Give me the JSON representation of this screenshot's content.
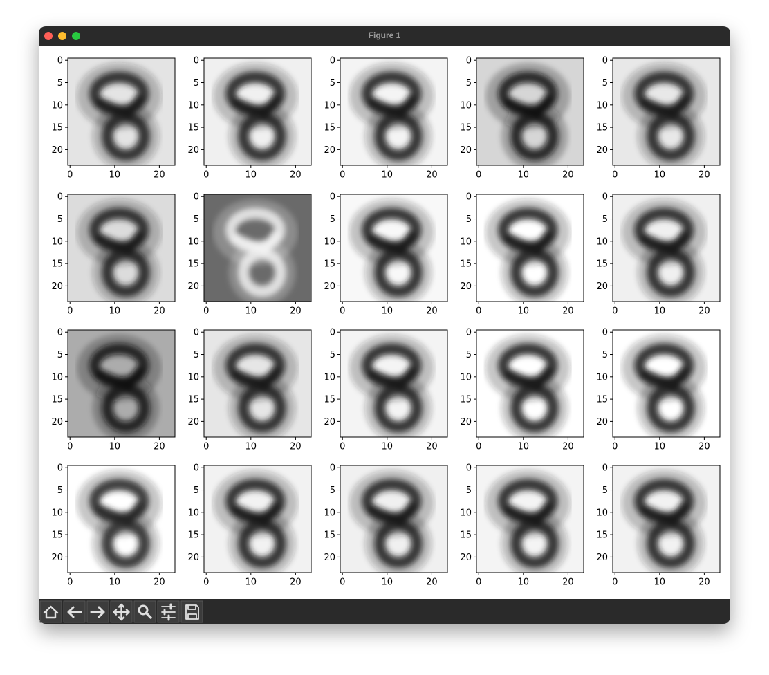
{
  "window": {
    "title": "Figure 1"
  },
  "axes": {
    "xlim": [
      -0.5,
      23.5
    ],
    "ylim": [
      23.5,
      -0.5
    ],
    "xticks": [
      0,
      10,
      20
    ],
    "yticks": [
      0,
      5,
      10,
      15,
      20
    ]
  },
  "panels": [
    {
      "background": "#e4e4e4",
      "ink": "#1a1a1a"
    },
    {
      "background": "#f0f0f0",
      "ink": "#1a1a1a"
    },
    {
      "background": "#f4f4f4",
      "ink": "#1a1a1a"
    },
    {
      "background": "#d6d6d6",
      "ink": "#111111"
    },
    {
      "background": "#e8e8e8",
      "ink": "#1a1a1a"
    },
    {
      "background": "#dcdcdc",
      "ink": "#1a1a1a"
    },
    {
      "background": "#6a6a6a",
      "ink": "#f4f4f4"
    },
    {
      "background": "#f8f8f8",
      "ink": "#1a1a1a"
    },
    {
      "background": "#ffffff",
      "ink": "#1a1a1a"
    },
    {
      "background": "#f0f0f0",
      "ink": "#1a1a1a"
    },
    {
      "background": "#acacac",
      "ink": "#111111"
    },
    {
      "background": "#e6e6e6",
      "ink": "#1a1a1a"
    },
    {
      "background": "#f4f4f4",
      "ink": "#1a1a1a"
    },
    {
      "background": "#ffffff",
      "ink": "#1a1a1a"
    },
    {
      "background": "#ffffff",
      "ink": "#1a1a1a"
    },
    {
      "background": "#ffffff",
      "ink": "#222222"
    },
    {
      "background": "#f2f2f2",
      "ink": "#1a1a1a"
    },
    {
      "background": "#f0f0f0",
      "ink": "#1a1a1a"
    },
    {
      "background": "#f4f4f4",
      "ink": "#1a1a1a"
    },
    {
      "background": "#f2f2f2",
      "ink": "#1a1a1a"
    }
  ]
}
